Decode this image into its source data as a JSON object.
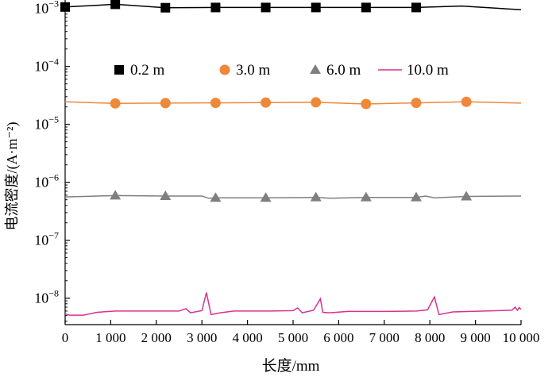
{
  "chart_data": {
    "type": "line",
    "xlabel": "长度/mm",
    "ylabel": "电流密度/(A·m⁻²)",
    "xlim": [
      0,
      10000
    ],
    "ylim": [
      3.5e-09,
      0.0014
    ],
    "yscale": "log",
    "x_ticks": [
      0,
      1000,
      2000,
      3000,
      4000,
      5000,
      6000,
      7000,
      8000,
      9000,
      10000
    ],
    "x_tick_labels": [
      "0",
      "1 000",
      "2 000",
      "3 000",
      "4 000",
      "5 000",
      "6 000",
      "7 000",
      "8 000",
      "9 000",
      "10 000"
    ],
    "y_ticks": [
      {
        "value": 0.001,
        "base": "10",
        "exp": "−3"
      },
      {
        "value": 0.0001,
        "base": "10",
        "exp": "−4"
      },
      {
        "value": 1e-05,
        "base": "10",
        "exp": "−5"
      },
      {
        "value": 1e-06,
        "base": "10",
        "exp": "−6"
      },
      {
        "value": 1e-07,
        "base": "10",
        "exp": "−7"
      },
      {
        "value": 1e-08,
        "base": "10",
        "exp": "−8"
      }
    ],
    "legend_position": "top, inside",
    "series": [
      {
        "name": "0.2 m",
        "color": "#000000",
        "marker": "square",
        "line": [
          [
            0,
            0.00106
          ],
          [
            1100,
            0.00118
          ],
          [
            2200,
            0.00103
          ],
          [
            3300,
            0.00104
          ],
          [
            4400,
            0.00104
          ],
          [
            5500,
            0.00104
          ],
          [
            6600,
            0.00104
          ],
          [
            7700,
            0.00104
          ],
          [
            8700,
            0.0011
          ],
          [
            10000,
            0.00095
          ]
        ],
        "markers": [
          [
            0,
            0.00106
          ],
          [
            1100,
            0.00118
          ],
          [
            2200,
            0.00103
          ],
          [
            3300,
            0.00104
          ],
          [
            4400,
            0.00104
          ],
          [
            5500,
            0.00104
          ],
          [
            6600,
            0.00104
          ],
          [
            7700,
            0.00104
          ]
        ]
      },
      {
        "name": "3.0 m",
        "color": "#F0883A",
        "marker": "circle",
        "line": [
          [
            0,
            2.45e-05
          ],
          [
            1100,
            2.3e-05
          ],
          [
            2200,
            2.33e-05
          ],
          [
            3300,
            2.35e-05
          ],
          [
            4400,
            2.38e-05
          ],
          [
            5500,
            2.4e-05
          ],
          [
            6600,
            2.25e-05
          ],
          [
            7700,
            2.35e-05
          ],
          [
            8800,
            2.45e-05
          ],
          [
            10000,
            2.33e-05
          ]
        ],
        "markers": [
          [
            1100,
            2.3e-05
          ],
          [
            2200,
            2.33e-05
          ],
          [
            3300,
            2.35e-05
          ],
          [
            4400,
            2.38e-05
          ],
          [
            5500,
            2.4e-05
          ],
          [
            6600,
            2.25e-05
          ],
          [
            7700,
            2.35e-05
          ],
          [
            8800,
            2.45e-05
          ]
        ]
      },
      {
        "name": "6.0 m",
        "color": "#7F7F7F",
        "marker": "triangle",
        "line": [
          [
            0,
            5.6e-07
          ],
          [
            1100,
            5.9e-07
          ],
          [
            2200,
            5.8e-07
          ],
          [
            3000,
            5.8e-07
          ],
          [
            3150,
            5.3e-07
          ],
          [
            3300,
            5.4e-07
          ],
          [
            4400,
            5.4e-07
          ],
          [
            5500,
            5.5e-07
          ],
          [
            5800,
            5.3e-07
          ],
          [
            6600,
            5.5e-07
          ],
          [
            7700,
            5.5e-07
          ],
          [
            7900,
            5.8e-07
          ],
          [
            8100,
            5.4e-07
          ],
          [
            8800,
            5.7e-07
          ],
          [
            10000,
            5.8e-07
          ]
        ],
        "markers": [
          [
            1100,
            5.9e-07
          ],
          [
            2200,
            5.8e-07
          ],
          [
            3300,
            5.4e-07
          ],
          [
            4400,
            5.4e-07
          ],
          [
            5500,
            5.5e-07
          ],
          [
            6600,
            5.5e-07
          ],
          [
            7700,
            5.5e-07
          ],
          [
            8800,
            5.7e-07
          ]
        ]
      },
      {
        "name": "10.0 m",
        "color": "#D9318E",
        "marker": "none",
        "line": [
          [
            0,
            5.4e-09
          ],
          [
            100,
            5.1e-09
          ],
          [
            400,
            5.1e-09
          ],
          [
            700,
            5.7e-09
          ],
          [
            1100,
            6e-09
          ],
          [
            2000,
            6e-09
          ],
          [
            2500,
            6e-09
          ],
          [
            2650,
            6.6e-09
          ],
          [
            2750,
            5.6e-09
          ],
          [
            3000,
            6.1e-09
          ],
          [
            3100,
            1.25e-08
          ],
          [
            3200,
            5.2e-09
          ],
          [
            3400,
            5.6e-09
          ],
          [
            3700,
            6e-09
          ],
          [
            4500,
            6e-09
          ],
          [
            5000,
            6.1e-09
          ],
          [
            5100,
            6.8e-09
          ],
          [
            5200,
            5.6e-09
          ],
          [
            5450,
            6.2e-09
          ],
          [
            5600,
            9.8e-09
          ],
          [
            5650,
            5.7e-09
          ],
          [
            5800,
            5.6e-09
          ],
          [
            6200,
            5.9e-09
          ],
          [
            7000,
            5.9e-09
          ],
          [
            7700,
            6e-09
          ],
          [
            7950,
            6.3e-09
          ],
          [
            8100,
            1.05e-08
          ],
          [
            8200,
            5.2e-09
          ],
          [
            8500,
            5.8e-09
          ],
          [
            9200,
            6e-09
          ],
          [
            9800,
            6.2e-09
          ],
          [
            9870,
            7e-09
          ],
          [
            9920,
            6.2e-09
          ],
          [
            9960,
            6.9e-09
          ],
          [
            10000,
            6.4e-09
          ]
        ],
        "markers": []
      }
    ]
  }
}
